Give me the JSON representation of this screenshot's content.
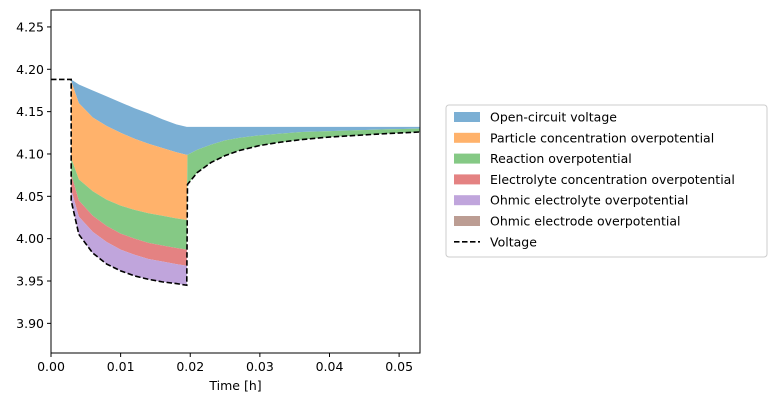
{
  "chart_data": {
    "type": "area",
    "title": "",
    "xlabel": "Time [h]",
    "ylabel": "",
    "xlim": [
      0.0,
      0.053
    ],
    "ylim": [
      3.865,
      4.27
    ],
    "xticks": [
      "0.00",
      "0.01",
      "0.02",
      "0.03",
      "0.04",
      "0.05"
    ],
    "yticks": [
      "3.90",
      "3.95",
      "4.00",
      "4.05",
      "4.10",
      "4.15",
      "4.20",
      "4.25"
    ],
    "grid": false,
    "legend_position": "outside-right",
    "x": [
      0.0029,
      0.004,
      0.006,
      0.008,
      0.01,
      0.012,
      0.014,
      0.016,
      0.018,
      0.0195,
      0.0196,
      0.021,
      0.023,
      0.025,
      0.027,
      0.03,
      0.033,
      0.036,
      0.04,
      0.044,
      0.048,
      0.053
    ],
    "series": [
      {
        "name": "Open-circuit voltage",
        "color": "#7bafd4",
        "values": [
          4.188,
          4.182,
          4.175,
          4.168,
          4.161,
          4.154,
          4.148,
          4.141,
          4.135,
          4.132,
          4.132,
          4.132,
          4.132,
          4.132,
          4.132,
          4.132,
          4.132,
          4.132,
          4.132,
          4.132,
          4.132,
          4.132
        ]
      },
      {
        "name": "Particle concentration overpotential",
        "color": "#ffb26b",
        "values": [
          4.186,
          4.16,
          4.143,
          4.133,
          4.125,
          4.118,
          4.112,
          4.107,
          4.102,
          4.099,
          4.099,
          4.105,
          4.111,
          4.116,
          4.119,
          4.122,
          4.124,
          4.126,
          4.127,
          4.128,
          4.129,
          4.13
        ]
      },
      {
        "name": "Reaction overpotential",
        "color": "#85c985",
        "values": [
          4.095,
          4.07,
          4.056,
          4.046,
          4.039,
          4.034,
          4.03,
          4.027,
          4.024,
          4.022,
          4.099,
          4.105,
          4.111,
          4.116,
          4.119,
          4.122,
          4.124,
          4.126,
          4.127,
          4.128,
          4.129,
          4.13
        ]
      },
      {
        "name": "Electrolyte concentration overpotential",
        "color": "#e48282",
        "values": [
          4.076,
          4.045,
          4.027,
          4.015,
          4.006,
          4.0,
          3.995,
          3.992,
          3.989,
          3.987,
          4.064,
          4.078,
          4.09,
          4.098,
          4.104,
          4.11,
          4.114,
          4.117,
          4.12,
          4.122,
          4.124,
          4.126
        ]
      },
      {
        "name": "Ohmic electrolyte overpotential",
        "color": "#c0a5dc",
        "values": [
          4.058,
          4.026,
          4.008,
          3.996,
          3.987,
          3.981,
          3.976,
          3.973,
          3.97,
          3.968,
          4.064,
          4.078,
          4.09,
          4.098,
          4.104,
          4.11,
          4.114,
          4.117,
          4.12,
          4.122,
          4.124,
          4.126
        ]
      },
      {
        "name": "Ohmic electrode overpotential",
        "color": "#bc9d93",
        "values": [
          4.045,
          4.005,
          3.983,
          3.97,
          3.962,
          3.956,
          3.952,
          3.949,
          3.947,
          3.945,
          4.064,
          4.078,
          4.09,
          4.098,
          4.104,
          4.11,
          4.114,
          4.117,
          4.12,
          4.122,
          4.124,
          4.126
        ]
      }
    ],
    "voltage": {
      "name": "Voltage",
      "color": "#000000",
      "style": "dashed",
      "x": [
        0.0,
        0.0029,
        0.0029,
        0.004,
        0.006,
        0.008,
        0.01,
        0.012,
        0.014,
        0.016,
        0.018,
        0.0195,
        0.0196,
        0.021,
        0.023,
        0.025,
        0.027,
        0.03,
        0.033,
        0.036,
        0.04,
        0.044,
        0.048,
        0.053
      ],
      "values": [
        4.188,
        4.188,
        4.045,
        4.005,
        3.983,
        3.97,
        3.962,
        3.956,
        3.952,
        3.949,
        3.947,
        3.945,
        4.064,
        4.078,
        4.09,
        4.098,
        4.104,
        4.11,
        4.114,
        4.117,
        4.12,
        4.122,
        4.124,
        4.126
      ]
    }
  }
}
